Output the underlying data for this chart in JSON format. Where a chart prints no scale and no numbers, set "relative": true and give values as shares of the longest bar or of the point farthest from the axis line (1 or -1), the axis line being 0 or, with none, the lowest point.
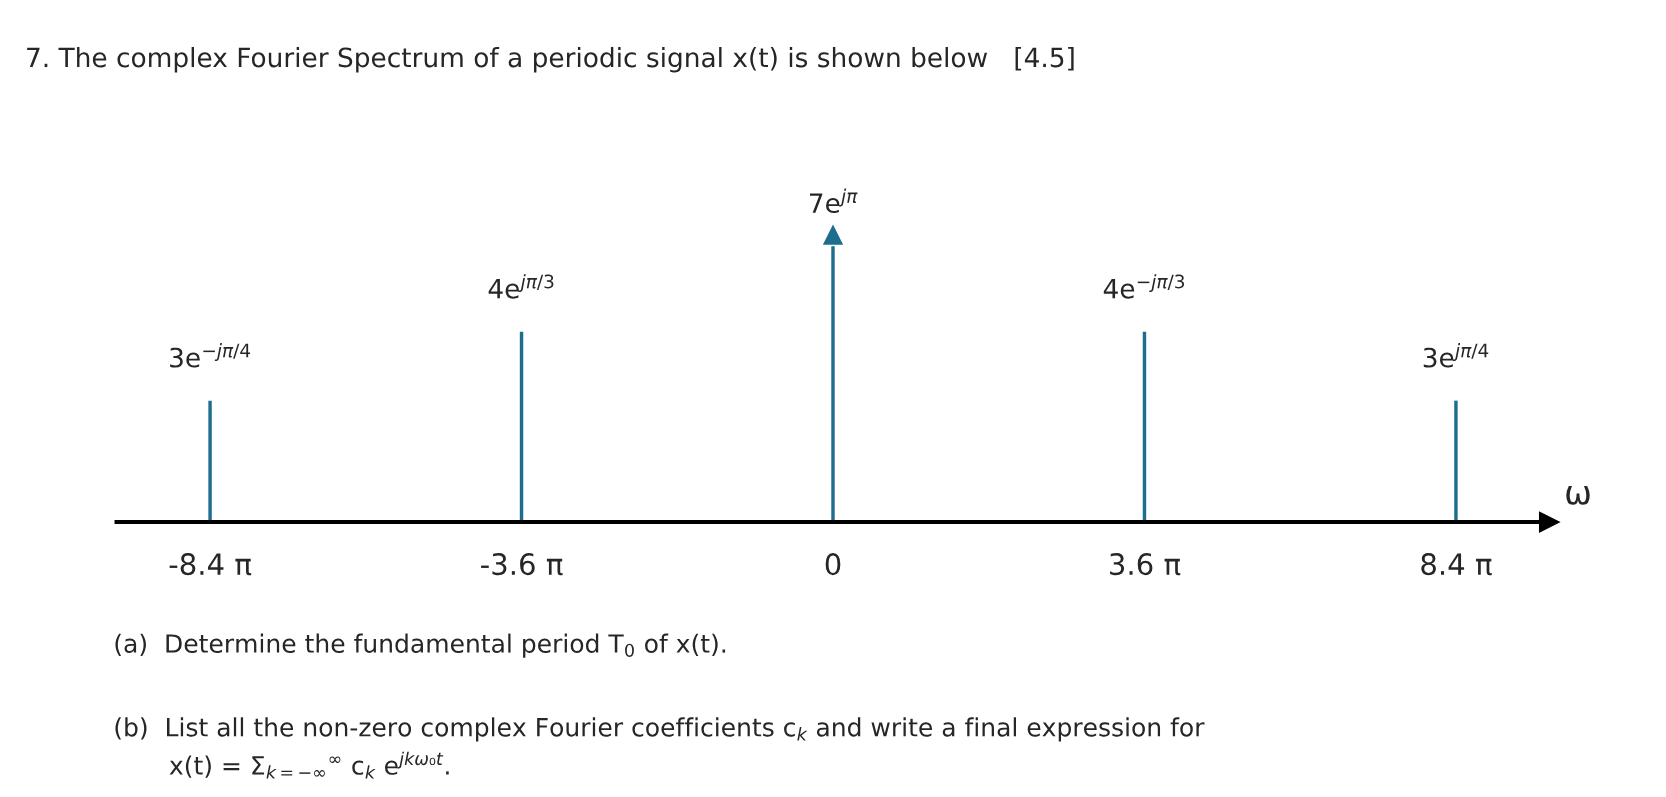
{
  "chart_data": {
    "type": "bar",
    "relative": true,
    "title": "7. The complex Fourier Spectrum of a periodic signal x(t) is shown below   [4.5]",
    "xlabel": "ω",
    "categories": [
      "-8.4 π",
      "-3.6 π",
      "0",
      "3.6 π",
      "8.4 π"
    ],
    "series": [
      {
        "color": "#1f6d8c",
        "values": [
          0.44,
          0.69,
          null,
          0.69,
          0.44
        ]
      },
      {
        "color": "#1f6d8c",
        "marker": "triangle",
        "values": [
          null,
          null,
          1,
          null,
          null
        ]
      }
    ],
    "annotations": [
      {
        "text": "3e$^{−jπ/4}$",
        "x": "-8.4 π",
        "y": 0.44
      },
      {
        "text": "4e$^{jπ/3}$",
        "x": "-3.6 π",
        "y": 0.69
      },
      {
        "text": "7e$^{jπ}$",
        "x": "0",
        "y": 1
      },
      {
        "text": "4e$^{−jπ/3}$",
        "x": "3.6 π",
        "y": 0.69
      },
      {
        "text": "3e$^{jπ/4}$",
        "x": "8.4 π",
        "y": 0.44
      },
      "(a)  Determine the fundamental period T$_{0}$ of x(t).",
      "(b)  List all the non-zero complex Fourier coefficients c$_{k}$ and write a final expression for\n       x(t) = Σ$_{k=−∞}$$^{∞}$ c$_{k}$ e$^{jkω₀t}$."
    ]
  }
}
